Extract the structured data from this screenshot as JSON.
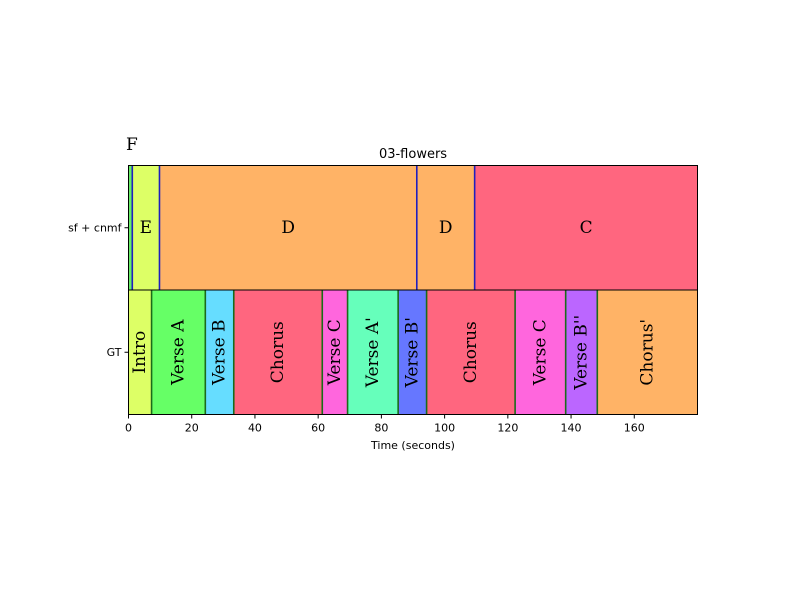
{
  "panel_label": "F",
  "chart_data": {
    "type": "segmentation",
    "title": "03-flowers",
    "xlabel": "Time (seconds)",
    "xlim": [
      0,
      180
    ],
    "xticks": [
      0,
      20,
      40,
      60,
      80,
      100,
      120,
      140,
      160
    ],
    "rows": [
      {
        "name": "sf + cnmf",
        "boundary_color": "#1f1fbf",
        "segments": [
          {
            "start": 0,
            "end": 1.2,
            "label": "",
            "color": "#66ee66"
          },
          {
            "start": 1.2,
            "end": 9.8,
            "label": "E",
            "color": "#ddff66"
          },
          {
            "start": 9.8,
            "end": 91.2,
            "label": "D",
            "color": "#ffb366"
          },
          {
            "start": 91.2,
            "end": 109.5,
            "label": "D",
            "color": "#ffb366"
          },
          {
            "start": 109.5,
            "end": 180,
            "label": "C",
            "color": "#ff667f"
          }
        ]
      },
      {
        "name": "GT",
        "boundary_color": "#1a6b1a",
        "segments": [
          {
            "start": 0,
            "end": 7.3,
            "label": "Intro",
            "color": "#ddff66"
          },
          {
            "start": 7.3,
            "end": 24.3,
            "label": "Verse A",
            "color": "#66ff66"
          },
          {
            "start": 24.3,
            "end": 33.3,
            "label": "Verse B",
            "color": "#66ddff"
          },
          {
            "start": 33.3,
            "end": 61.3,
            "label": "Chorus",
            "color": "#ff667f"
          },
          {
            "start": 61.3,
            "end": 69.3,
            "label": "Verse C",
            "color": "#ff66dd"
          },
          {
            "start": 69.3,
            "end": 85.3,
            "label": "Verse A'",
            "color": "#66ffbb"
          },
          {
            "start": 85.3,
            "end": 94.3,
            "label": "Verse B'",
            "color": "#6677ff"
          },
          {
            "start": 94.3,
            "end": 122.3,
            "label": "Chorus",
            "color": "#ff667f"
          },
          {
            "start": 122.3,
            "end": 138.3,
            "label": "Verse C",
            "color": "#ff66dd"
          },
          {
            "start": 138.3,
            "end": 148.3,
            "label": "Verse B''",
            "color": "#bb66ff"
          },
          {
            "start": 148.3,
            "end": 180,
            "label": "Chorus'",
            "color": "#ffb366"
          }
        ]
      }
    ]
  }
}
